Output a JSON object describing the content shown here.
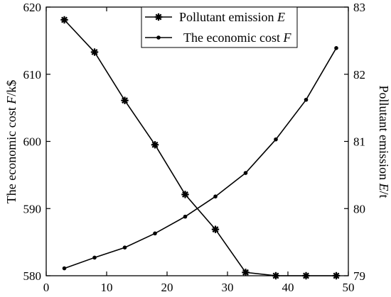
{
  "chart_data": {
    "type": "line",
    "x_ticks": [
      0,
      10,
      20,
      30,
      40,
      50
    ],
    "xlim": [
      0,
      50
    ],
    "ylim_left": [
      580,
      620
    ],
    "yticks_left": [
      580,
      590,
      600,
      610,
      620
    ],
    "ylim_right": [
      79,
      83
    ],
    "yticks_right": [
      79,
      80,
      81,
      82,
      83
    ],
    "ylabel_left": {
      "prefix": "The economic cost ",
      "var": "F",
      "unit": "/k$"
    },
    "ylabel_right": {
      "prefix": "Pollutant emission ",
      "var": "E",
      "unit": "/t"
    },
    "grid": false,
    "legend_position": "top-center",
    "legend": [
      {
        "prefix": "Pollutant emission ",
        "var": "E",
        "marker": "star"
      },
      {
        "prefix": "The economic cost ",
        "var": "F",
        "marker": "dot"
      }
    ],
    "series": [
      {
        "name": "Pollutant emission E",
        "axis": "right",
        "marker": "star",
        "color": "#000000",
        "x": [
          3,
          8,
          13,
          18,
          23,
          28,
          33,
          38,
          43,
          48
        ],
        "y": [
          82.81,
          82.33,
          81.61,
          80.95,
          80.21,
          79.69,
          79.05,
          79.0,
          79.0,
          79.0
        ]
      },
      {
        "name": "The economic cost F",
        "axis": "left",
        "marker": "dot",
        "color": "#000000",
        "x": [
          3,
          8,
          13,
          18,
          23,
          28,
          33,
          38,
          43,
          48
        ],
        "y": [
          581.1,
          582.7,
          584.2,
          586.3,
          588.8,
          591.8,
          595.3,
          600.3,
          606.2,
          613.9
        ]
      }
    ]
  }
}
